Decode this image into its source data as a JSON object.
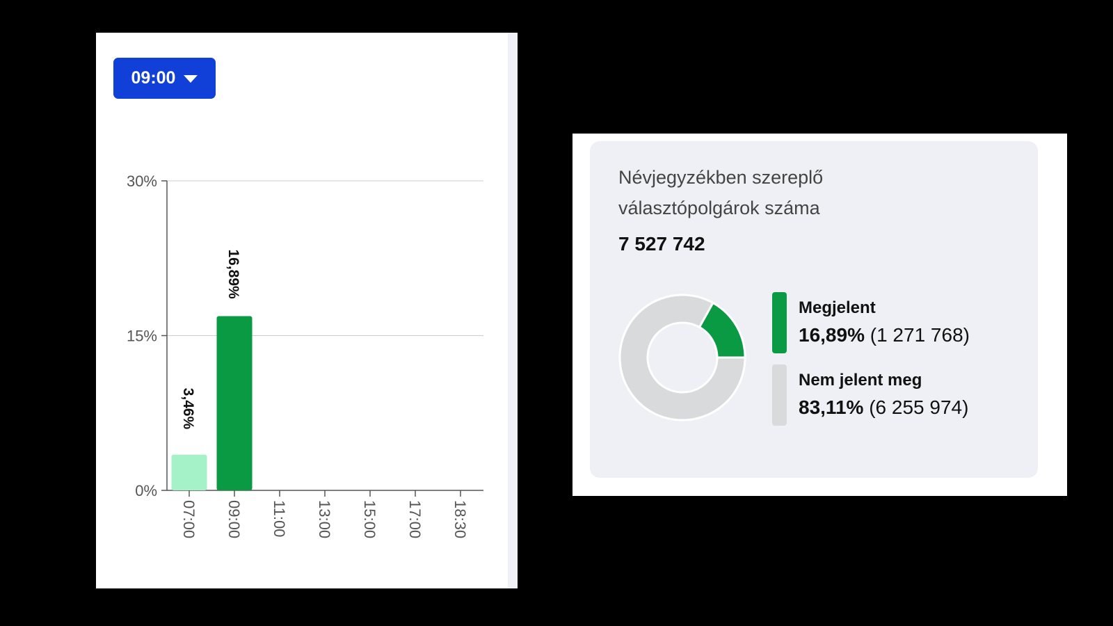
{
  "colors": {
    "accent_blue": "#1040d8",
    "green": "#0b9a44",
    "light_green": "#a6f2c8",
    "grey": "#d8dadc",
    "grid": "#cccccc",
    "axis": "#555555"
  },
  "dropdown": {
    "selected": "09:00",
    "icon": "caret-down-icon"
  },
  "chart_data": [
    {
      "type": "bar",
      "categories": [
        "07:00",
        "09:00",
        "11:00",
        "13:00",
        "15:00",
        "17:00",
        "18:30"
      ],
      "values": [
        3.46,
        16.89,
        null,
        null,
        null,
        null,
        null
      ],
      "value_labels": [
        "3,46%",
        "16,89%",
        "",
        "",
        "",
        "",
        ""
      ],
      "highlighted_category": "09:00",
      "bar_colors": [
        "#a6f2c8",
        "#0b9a44"
      ],
      "ylim": [
        0,
        30
      ],
      "yticks": [
        0,
        15,
        30
      ],
      "ytick_labels": [
        "0%",
        "15%",
        "30%"
      ],
      "grid": true,
      "title": "",
      "xlabel": "",
      "ylabel": ""
    },
    {
      "type": "pie",
      "donut": true,
      "title": "Névjegyzékben szereplő választópolgárok száma",
      "total_label": "7 527 742",
      "slices": [
        {
          "name": "Megjelent",
          "percent": 16.89,
          "percent_label": "16,89%",
          "count_label": "(1 271 768)",
          "color": "#0b9a44"
        },
        {
          "name": "Nem jelent meg",
          "percent": 83.11,
          "percent_label": "83,11%",
          "count_label": "(6 255 974)",
          "color": "#d8dadc"
        }
      ]
    }
  ]
}
